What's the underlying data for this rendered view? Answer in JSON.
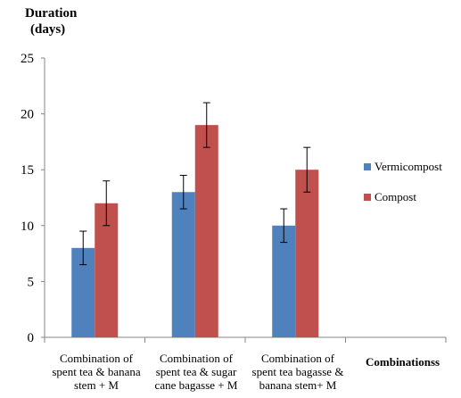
{
  "chart_data": {
    "type": "bar",
    "ylabel_line1": "Duration",
    "ylabel_line2": "(days)",
    "xlabel": "Combinationss",
    "ylim": [
      0,
      25
    ],
    "yticks": [
      0,
      5,
      10,
      15,
      20,
      25
    ],
    "categories": [
      [
        "Combination of",
        "spent tea & banana",
        "stem + M"
      ],
      [
        "Combination of",
        "spent tea & sugar",
        "cane bagasse + M"
      ],
      [
        "Combination of",
        "spent tea bagasse &",
        "banana stem+ M"
      ]
    ],
    "series": [
      {
        "name": "Vermicompost",
        "values": [
          8,
          13,
          10
        ],
        "errors": [
          1.5,
          1.5,
          1.5
        ],
        "color": "#4F81BD"
      },
      {
        "name": "Compost",
        "values": [
          12,
          19,
          15
        ],
        "errors": [
          2,
          2,
          2
        ],
        "color": "#C0504D"
      }
    ],
    "legend_position": "right",
    "grid": false
  }
}
